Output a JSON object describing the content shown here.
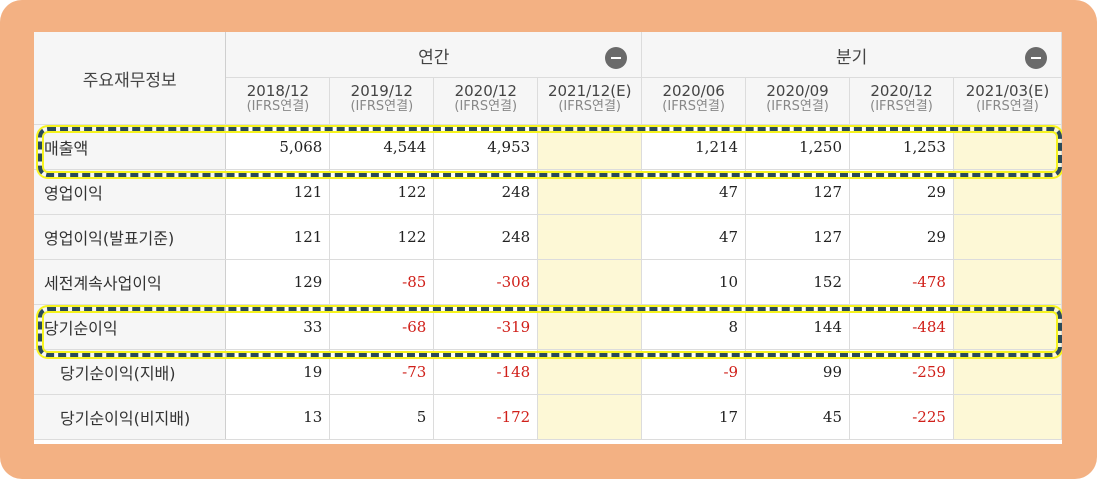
{
  "table": {
    "label_header": "주요재무정보",
    "groups": [
      {
        "label": "연간",
        "icon": "minus-circle-icon"
      },
      {
        "label": "분기",
        "icon": "minus-circle-icon"
      }
    ],
    "periods": [
      {
        "period": "2018/12",
        "basis": "(IFRS연결)"
      },
      {
        "period": "2019/12",
        "basis": "(IFRS연결)"
      },
      {
        "period": "2020/12",
        "basis": "(IFRS연결)"
      },
      {
        "period": "2021/12(E)",
        "basis": "(IFRS연결)"
      },
      {
        "period": "2020/06",
        "basis": "(IFRS연결)"
      },
      {
        "period": "2020/09",
        "basis": "(IFRS연결)"
      },
      {
        "period": "2020/12",
        "basis": "(IFRS연결)"
      },
      {
        "period": "2021/03(E)",
        "basis": "(IFRS연결)"
      }
    ],
    "rows": [
      {
        "label": "매출액",
        "values": [
          "5,068",
          "4,544",
          "4,953",
          "",
          "1,214",
          "1,250",
          "1,253",
          ""
        ]
      },
      {
        "label": "영업이익",
        "values": [
          "121",
          "122",
          "248",
          "",
          "47",
          "127",
          "29",
          ""
        ]
      },
      {
        "label": "영업이익(발표기준)",
        "values": [
          "121",
          "122",
          "248",
          "",
          "47",
          "127",
          "29",
          ""
        ]
      },
      {
        "label": "세전계속사업이익",
        "values": [
          "129",
          "-85",
          "-308",
          "",
          "10",
          "152",
          "-478",
          ""
        ]
      },
      {
        "label": "당기순이익",
        "values": [
          "33",
          "-68",
          "-319",
          "",
          "8",
          "144",
          "-484",
          ""
        ]
      },
      {
        "label": "당기순이익(지배)",
        "values": [
          "19",
          "-73",
          "-148",
          "",
          "-9",
          "99",
          "-259",
          ""
        ]
      },
      {
        "label": "당기순이익(비지배)",
        "values": [
          "13",
          "5",
          "-172",
          "",
          "17",
          "45",
          "-225",
          ""
        ]
      }
    ]
  },
  "colors": {
    "frame": "#f3b183",
    "negative": "#d0201a",
    "estimate_bg": "#fdf8d6",
    "highlight_border": "#2b4a5a",
    "highlight_glow": "#f6f31f"
  }
}
